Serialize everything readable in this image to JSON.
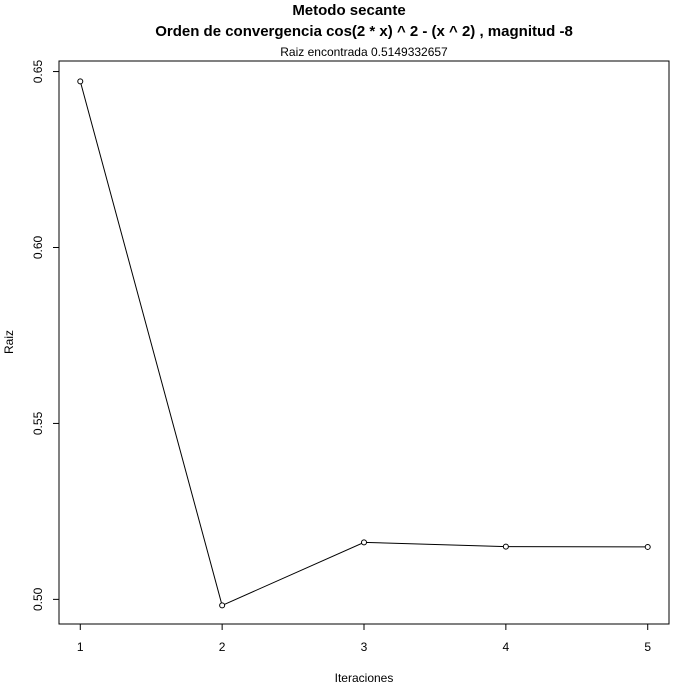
{
  "chart_data": {
    "type": "line",
    "title": "Metodo secante",
    "subtitle": "Orden de convergencia cos(2 * x) ^ 2 - (x ^ 2) , magnitud -8",
    "annotation": "Raiz encontrada 0.5149332657",
    "xlabel": "Iteraciones",
    "ylabel": "Raiz",
    "x": [
      1,
      2,
      3,
      4,
      5
    ],
    "y": [
      0.6472,
      0.4983,
      0.5162,
      0.515,
      0.5149
    ],
    "xlim": [
      0.85,
      5.15
    ],
    "ylim": [
      0.493,
      0.653
    ],
    "x_ticks": [
      1,
      2,
      3,
      4,
      5
    ],
    "x_tick_labels": [
      "1",
      "2",
      "3",
      "4",
      "5"
    ],
    "y_ticks": [
      0.5,
      0.55,
      0.6,
      0.65
    ],
    "y_tick_labels": [
      "0.50",
      "0.55",
      "0.60",
      "0.65"
    ],
    "grid": false,
    "marker": "open-circle",
    "line_color": "#000000"
  }
}
